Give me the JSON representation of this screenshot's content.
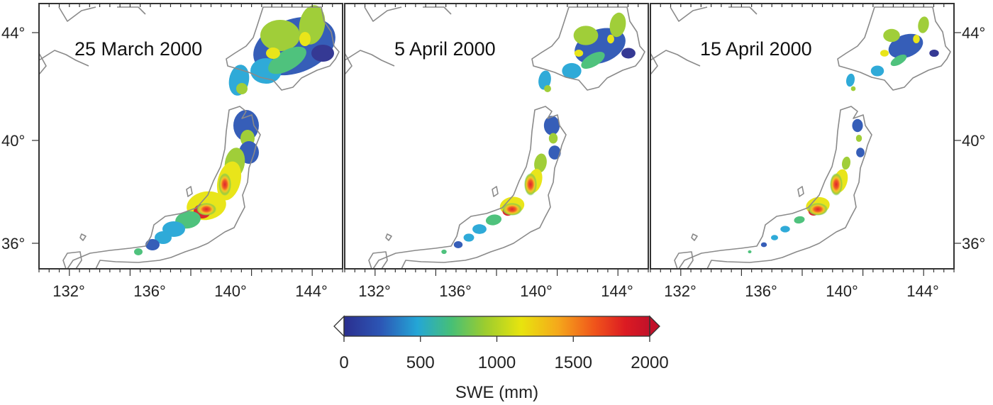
{
  "panels": [
    {
      "title": "25 March 2000",
      "stage": 0
    },
    {
      "title": "5 April 2000",
      "stage": 1
    },
    {
      "title": "15 April 2000",
      "stage": 2
    }
  ],
  "axes": {
    "lon_ticks": [
      "132°",
      "136°",
      "140°",
      "144°"
    ],
    "lat_ticks": [
      "44°",
      "40°",
      "36°"
    ],
    "lon_range": [
      131,
      146
    ],
    "lat_range": [
      35,
      45
    ]
  },
  "colorbar": {
    "ticks": [
      "0",
      "500",
      "1000",
      "1500",
      "2000"
    ],
    "label": "SWE (mm)",
    "range": [
      0,
      2000
    ],
    "extend": "both",
    "colors": [
      "#2b2f8f",
      "#2c56b5",
      "#24a6d6",
      "#46bf77",
      "#9bcc2f",
      "#e8e40e",
      "#f5a81b",
      "#f0541b",
      "#dc1b22",
      "#c2112a"
    ]
  }
}
